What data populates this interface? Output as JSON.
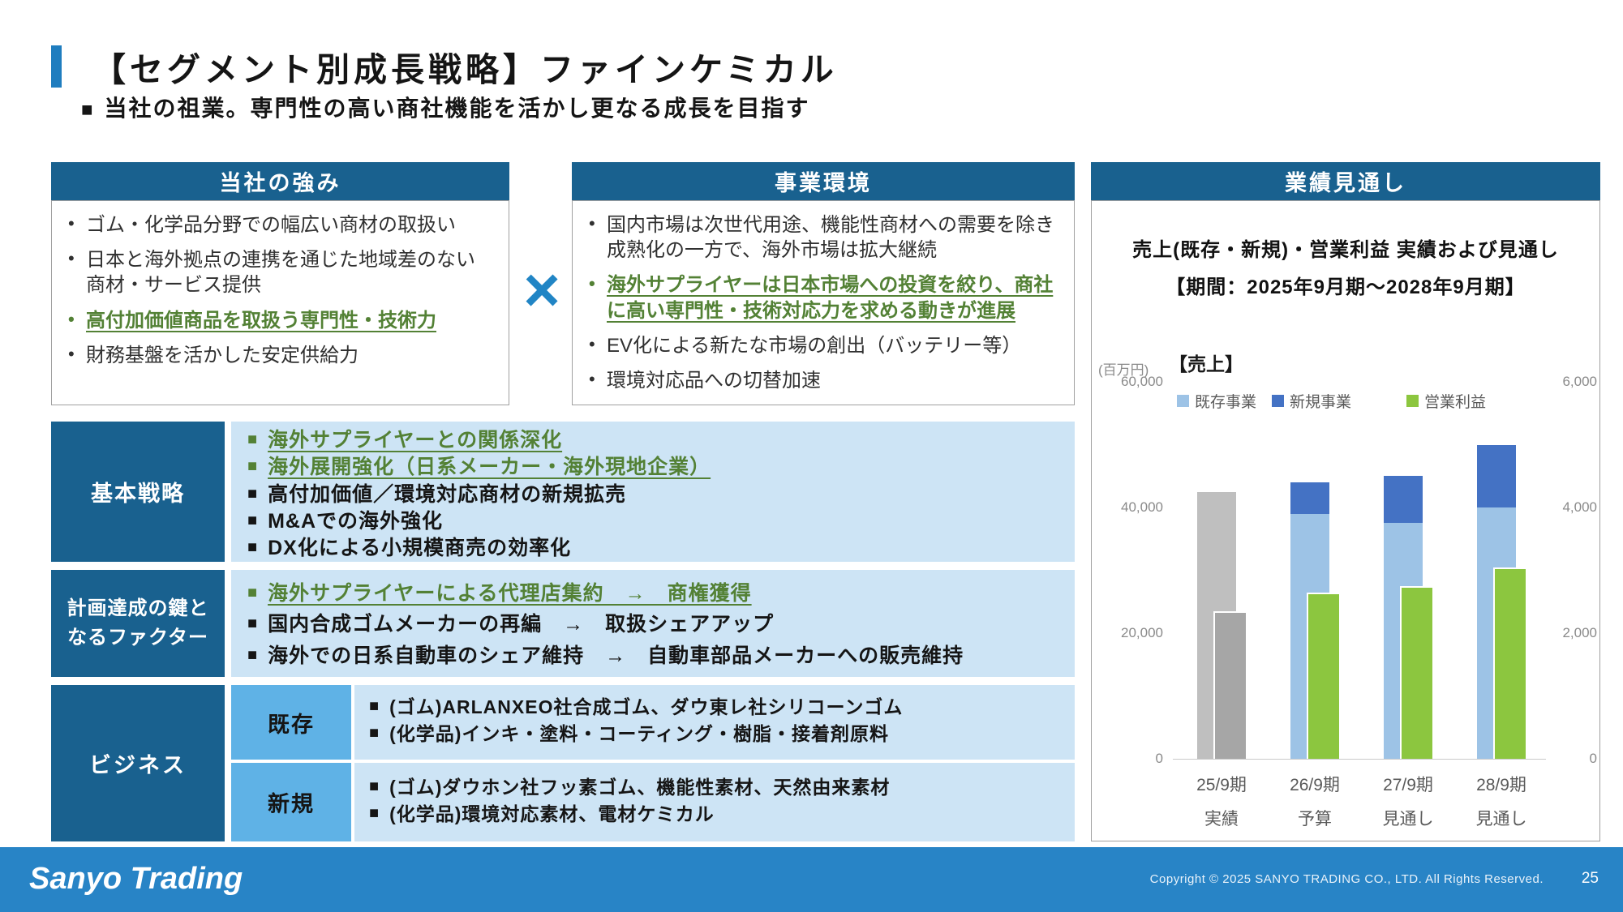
{
  "markers": {
    "dot": "•",
    "square": "■",
    "multiply": "×"
  },
  "colors": {
    "header_bar": "#19618f",
    "accent_blue": "#1f7dbf",
    "light_blue_fill": "#cde4f5",
    "mid_blue_fill": "#5fb2e6",
    "green_text": "#538135",
    "footer_blue": "#2884c6",
    "chart_existing": "#9dc3e6",
    "chart_new": "#4472c4",
    "chart_profit": "#8cc63f",
    "chart_actual_sales": "#bfbfbf",
    "chart_actual_profit": "#a6a6a6"
  },
  "header": {
    "title": "【セグメント別成長戦略】ファインケミカル",
    "subtitle": "当社の祖業。専門性の高い商社機能を活かし更なる成長を目指す"
  },
  "strengths_panel": {
    "title": "当社の強み",
    "bullets": [
      {
        "text": "ゴム・化学品分野での幅広い商材の取扱い",
        "em": false
      },
      {
        "text": "日本と海外拠点の連携を通じた地域差のない商材・サービス提供",
        "em": false
      },
      {
        "text": "高付加価値商品を取扱う専門性・技術力",
        "em": true
      },
      {
        "text": "財務基盤を活かした安定供給力",
        "em": false
      }
    ]
  },
  "environment_panel": {
    "title": "事業環境",
    "bullets": [
      {
        "text": "国内市場は次世代用途、機能性商材への需要を除き成熟化の一方で、海外市場は拡大継続",
        "em": false
      },
      {
        "text": "海外サプライヤーは日本市場への投資を絞り、商社に高い専門性・技術対応力を求める動きが進展",
        "em": true
      },
      {
        "text": "EV化による新たな市場の創出（バッテリー等）",
        "em": false
      },
      {
        "text": "環境対応品への切替加速",
        "em": false
      }
    ]
  },
  "outlook_panel": {
    "title": "業績見通し"
  },
  "strategy_row": {
    "label": "基本戦略",
    "items": [
      {
        "text": "海外サプライヤーとの関係深化",
        "em": true
      },
      {
        "text": "海外展開強化（日系メーカー・海外現地企業）",
        "em": true
      },
      {
        "text": "高付加価値／環境対応商材の新規拡売",
        "em": false
      },
      {
        "text": "M&Aでの海外強化",
        "em": false
      },
      {
        "text": "DX化による小規模商売の効率化",
        "em": false
      }
    ]
  },
  "factors_row": {
    "label_line1": "計画達成の鍵と",
    "label_line2": "なるファクター",
    "items": [
      {
        "text": "海外サプライヤーによる代理店集約　→　商権獲得",
        "em": true
      },
      {
        "text": "国内合成ゴムメーカーの再編　→　取扱シェアアップ",
        "em": false
      },
      {
        "text": "海外での日系自動車のシェア維持　→　自動車部品メーカーへの販売維持",
        "em": false
      }
    ]
  },
  "business_row": {
    "label": "ビジネス",
    "rows": [
      {
        "tag": "既存",
        "items": [
          "(ゴム)ARLANXEO社合成ゴム、ダウ東レ社シリコーンゴム",
          "(化学品)インキ・塗料・コーティング・樹脂・接着剤原料"
        ]
      },
      {
        "tag": "新規",
        "items": [
          "(ゴム)ダウホン社フッ素ゴム、機能性素材、天然由来素材",
          "(化学品)環境対応素材、電材ケミカル"
        ]
      }
    ]
  },
  "chart_data": {
    "type": "bar",
    "title": "売上(既存・新規)・営業利益 実績および見通し",
    "subtitle": "【期間：2025年9月期～2028年9月期】",
    "unit_label": "(百万円)",
    "group_label": "【売上】",
    "legend": [
      {
        "label": "既存事業",
        "color": "#9dc3e6"
      },
      {
        "label": "新規事業",
        "color": "#4472c4"
      },
      {
        "label": "営業利益",
        "color": "#8cc63f"
      }
    ],
    "left_axis": {
      "max": 60000,
      "ticks": [
        "60,000",
        "40,000",
        "20,000",
        "0"
      ]
    },
    "right_axis": {
      "max": 6000,
      "ticks": [
        "6,000",
        "4,000",
        "2,000",
        "0"
      ]
    },
    "category_labels": [
      {
        "line1": "25/9期",
        "line2": "実績",
        "actual": true
      },
      {
        "line1": "26/9期",
        "line2": "予算",
        "actual": false
      },
      {
        "line1": "27/9期",
        "line2": "見通し",
        "actual": false
      },
      {
        "line1": "28/9期",
        "line2": "見通し",
        "actual": false
      }
    ],
    "series": [
      {
        "name": "既存事業",
        "axis": "left",
        "values": [
          42500,
          39000,
          37500,
          40000
        ]
      },
      {
        "name": "新規事業",
        "axis": "left",
        "values": [
          0,
          5000,
          7500,
          10000
        ]
      },
      {
        "name": "営業利益",
        "axis": "right",
        "values": [
          2350,
          2650,
          2750,
          3050
        ]
      }
    ]
  },
  "footer": {
    "logo": "Sanyo Trading",
    "copyright": "Copyright © 2025 SANYO TRADING CO., LTD. All Rights Reserved.",
    "page": "25"
  }
}
